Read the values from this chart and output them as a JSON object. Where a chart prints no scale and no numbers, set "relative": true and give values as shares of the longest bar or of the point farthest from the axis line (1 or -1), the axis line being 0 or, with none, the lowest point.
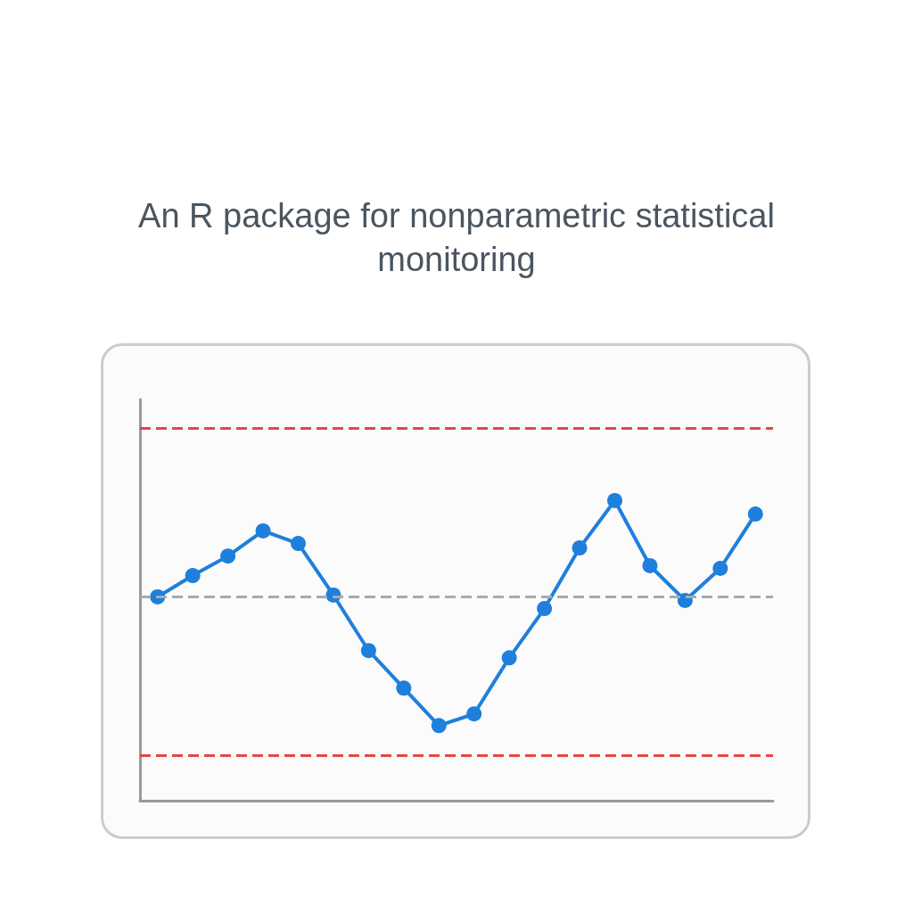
{
  "chart_data": {
    "type": "line",
    "subtitle": "An R package for nonparametric statistical monitoring",
    "relative": true,
    "categories": [
      null,
      null,
      null,
      null,
      null,
      null,
      null,
      null,
      null,
      null,
      null,
      null,
      null,
      null,
      null,
      null,
      null,
      null
    ],
    "series": [
      {
        "color": "#1f7fdc",
        "values": [
          0.679,
          0.75,
          0.815,
          0.899,
          0.857,
          0.685,
          0.5,
          0.375,
          0.25,
          0.289,
          0.476,
          0.64,
          0.842,
          1,
          0.783,
          0.667,
          0.774,
          0.955
        ]
      }
    ],
    "marker": "circle",
    "grid": false,
    "ref_lines": [
      {
        "axis": "y",
        "value": 1.238,
        "color": "#e84545",
        "line_style": "dashed"
      },
      {
        "axis": "y",
        "value": 0.682,
        "color": "#aaaaaa",
        "line_style": "dashed"
      },
      {
        "axis": "y",
        "value": 0.152,
        "color": "#e84545",
        "line_style": "dashed"
      }
    ]
  }
}
